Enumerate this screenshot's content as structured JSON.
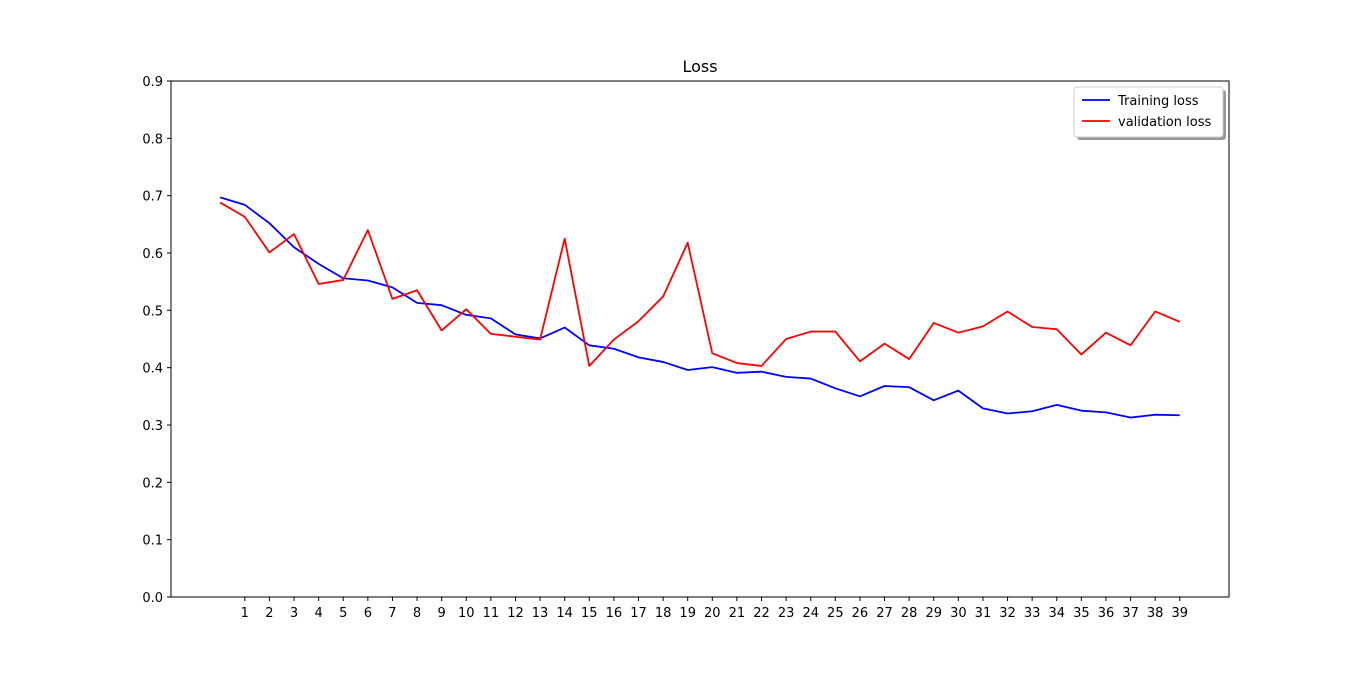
{
  "chart_data": {
    "type": "line",
    "title": "Loss",
    "xlabel": "",
    "ylabel": "",
    "x": [
      0,
      1,
      2,
      3,
      4,
      5,
      6,
      7,
      8,
      9,
      10,
      11,
      12,
      13,
      14,
      15,
      16,
      17,
      18,
      19,
      20,
      21,
      22,
      23,
      24,
      25,
      26,
      27,
      28,
      29,
      30,
      31,
      32,
      33,
      34,
      35,
      36,
      37,
      38,
      39
    ],
    "xticks": [
      1,
      2,
      3,
      4,
      5,
      6,
      7,
      8,
      9,
      10,
      11,
      12,
      13,
      14,
      15,
      16,
      17,
      18,
      19,
      20,
      21,
      22,
      23,
      24,
      25,
      26,
      27,
      28,
      29,
      30,
      31,
      32,
      33,
      34,
      35,
      36,
      37,
      38,
      39
    ],
    "xlim": [
      -2,
      41
    ],
    "ylim": [
      0.0,
      0.9
    ],
    "yticks": [
      0.0,
      0.1,
      0.2,
      0.3,
      0.4,
      0.5,
      0.6,
      0.7,
      0.8,
      0.9
    ],
    "grid": false,
    "legend": "top-right",
    "series": [
      {
        "name": "Training loss",
        "color": "#0000ff",
        "values": [
          0.697,
          0.684,
          0.652,
          0.61,
          0.581,
          0.556,
          0.552,
          0.54,
          0.513,
          0.509,
          0.492,
          0.486,
          0.458,
          0.451,
          0.47,
          0.439,
          0.433,
          0.418,
          0.41,
          0.396,
          0.401,
          0.391,
          0.393,
          0.384,
          0.381,
          0.364,
          0.35,
          0.368,
          0.366,
          0.343,
          0.36,
          0.329,
          0.32,
          0.324,
          0.335,
          0.325,
          0.322,
          0.313,
          0.318,
          0.317
        ]
      },
      {
        "name": "validation loss",
        "color": "#ff0000",
        "values": [
          0.688,
          0.663,
          0.601,
          0.633,
          0.546,
          0.553,
          0.64,
          0.52,
          0.535,
          0.465,
          0.502,
          0.459,
          0.454,
          0.449,
          0.625,
          0.403,
          0.449,
          0.481,
          0.524,
          0.618,
          0.425,
          0.408,
          0.403,
          0.45,
          0.463,
          0.463,
          0.411,
          0.442,
          0.415,
          0.478,
          0.461,
          0.472,
          0.498,
          0.471,
          0.467,
          0.423,
          0.461,
          0.439,
          0.498,
          0.48
        ]
      }
    ]
  }
}
